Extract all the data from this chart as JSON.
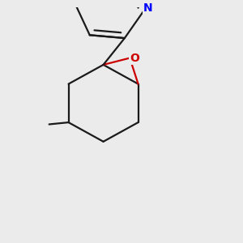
{
  "background_color": "#ebebeb",
  "bond_color": "#1a1a1a",
  "nitrogen_color": "#0000ff",
  "oxygen_color": "#cc0000",
  "bond_width": 1.6,
  "figsize": [
    3.0,
    3.0
  ],
  "dpi": 100
}
